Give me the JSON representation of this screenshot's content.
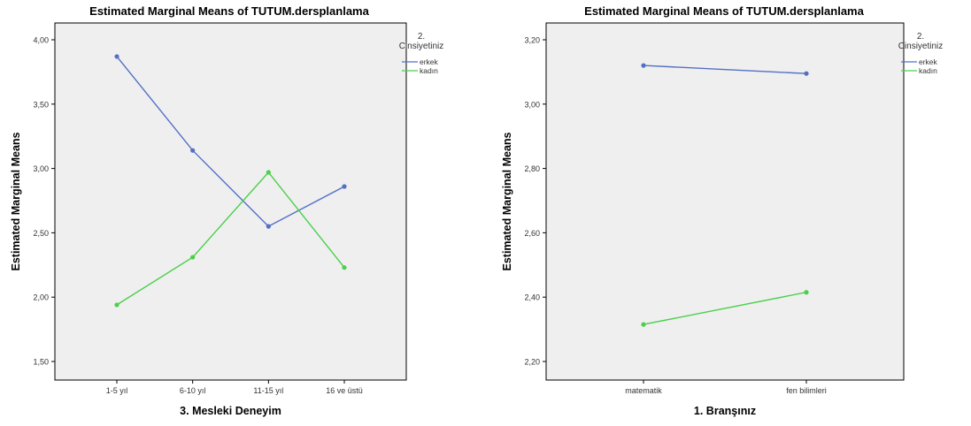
{
  "chart_data": [
    {
      "type": "line",
      "title": "Estimated Marginal Means of TUTUM.dersplanlama",
      "xlabel": "3. Mesleki Deneyim",
      "ylabel": "Estimated Marginal Means",
      "categories": [
        "1-5 yıl",
        "6-10 yıl",
        "11-15 yıl",
        "16 ve üstü"
      ],
      "ylim": [
        1.5,
        4.0
      ],
      "yticks": [
        "1,50",
        "2,00",
        "2,50",
        "3,00",
        "3,50",
        "4,00"
      ],
      "legend_title": "2. Cinsiyetiniz",
      "legend_position": "right",
      "series": [
        {
          "name": "erkek",
          "color": "#5470c6",
          "values": [
            3.87,
            3.14,
            2.55,
            2.86
          ]
        },
        {
          "name": "kadın",
          "color": "#4ccf4c",
          "values": [
            1.94,
            2.31,
            2.97,
            2.23
          ]
        }
      ]
    },
    {
      "type": "line",
      "title": "Estimated Marginal Means of TUTUM.dersplanlama",
      "xlabel": "1. Branşınız",
      "ylabel": "Estimated Marginal Means",
      "categories": [
        "matematik",
        "fen bilimleri"
      ],
      "ylim": [
        2.2,
        3.2
      ],
      "yticks": [
        "2,20",
        "2,40",
        "2,60",
        "2,80",
        "3,00",
        "3,20"
      ],
      "legend_title": "2. Cinsiyetiniz",
      "legend_position": "right",
      "series": [
        {
          "name": "erkek",
          "color": "#5470c6",
          "values": [
            3.12,
            3.095
          ]
        },
        {
          "name": "kadın",
          "color": "#4ccf4c",
          "values": [
            2.315,
            2.415
          ]
        }
      ]
    }
  ],
  "colors": {
    "plot_background": "#efefef",
    "axis": "#000000"
  }
}
